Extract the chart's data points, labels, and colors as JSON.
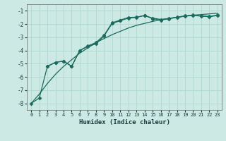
{
  "xlabel": "Humidex (Indice chaleur)",
  "xlim": [
    -0.5,
    23.5
  ],
  "ylim": [
    -8.5,
    -0.5
  ],
  "yticks": [
    -8,
    -7,
    -6,
    -5,
    -4,
    -3,
    -2,
    -1
  ],
  "xticks": [
    0,
    1,
    2,
    3,
    4,
    5,
    6,
    7,
    8,
    9,
    10,
    11,
    12,
    13,
    14,
    15,
    16,
    17,
    18,
    19,
    20,
    21,
    22,
    23
  ],
  "bg_color": "#cce9e4",
  "grid_color": "#aed8d0",
  "line_color": "#1a6b5e",
  "line1": {
    "x": [
      0,
      1,
      2,
      3,
      4,
      5,
      6,
      7,
      8,
      9,
      10,
      11,
      12,
      13,
      14,
      15,
      16,
      17,
      18,
      19,
      20,
      21,
      22,
      23
    ],
    "y": [
      -8.0,
      -7.6,
      -5.2,
      -4.9,
      -4.8,
      -5.2,
      -4.0,
      -3.7,
      -3.5,
      -2.9,
      -1.95,
      -1.75,
      -1.55,
      -1.5,
      -1.35,
      -1.6,
      -1.7,
      -1.6,
      -1.5,
      -1.4,
      -1.35,
      -1.4,
      -1.45,
      -1.35
    ],
    "marker": "D",
    "markersize": 2.5
  },
  "line2": {
    "x": [
      2,
      3,
      4,
      5,
      6,
      7,
      8,
      9,
      10,
      11,
      12,
      13,
      14,
      15,
      16,
      17,
      18,
      19,
      20,
      21,
      22,
      23
    ],
    "y": [
      -5.2,
      -4.9,
      -4.8,
      -5.2,
      -4.0,
      -3.65,
      -3.4,
      -2.85,
      -1.9,
      -1.7,
      -1.5,
      -1.48,
      -1.35,
      -1.55,
      -1.65,
      -1.58,
      -1.48,
      -1.38,
      -1.32,
      -1.38,
      -1.42,
      -1.32
    ],
    "marker": "P",
    "markersize": 3.0
  },
  "line3": {
    "x": [
      0,
      1,
      2,
      3,
      4,
      5,
      6,
      7,
      8,
      9,
      10,
      11,
      12,
      13,
      14,
      15,
      16,
      17,
      18,
      19,
      20,
      21,
      22,
      23
    ],
    "y": [
      -8.0,
      -7.3,
      -6.5,
      -5.8,
      -5.2,
      -4.7,
      -4.2,
      -3.8,
      -3.4,
      -3.1,
      -2.8,
      -2.55,
      -2.3,
      -2.1,
      -1.95,
      -1.8,
      -1.68,
      -1.57,
      -1.48,
      -1.4,
      -1.33,
      -1.28,
      -1.23,
      -1.18
    ],
    "marker": null,
    "markersize": 0
  }
}
